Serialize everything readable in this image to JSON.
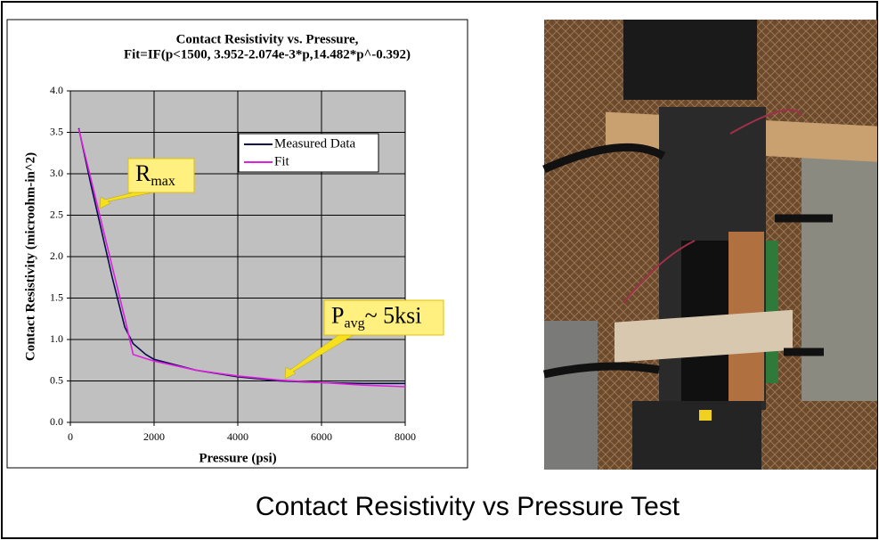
{
  "chart_data": {
    "type": "line",
    "title": [
      "Contact Resistivity vs. Pressure,",
      "Fit=IF(p<1500, 3.952-2.074e-3*p,14.482*p^-0.392)"
    ],
    "x_label": "Pressure (psi)",
    "y_label": "Contact Resistivity (microohm-in^2)",
    "x": [
      200,
      500,
      1000,
      1300,
      1500,
      1800,
      2000,
      3000,
      4000,
      5000,
      6000,
      7000,
      8000
    ],
    "series": [
      {
        "name": "Measured Data",
        "color": "#0a0a50",
        "values": [
          3.55,
          2.85,
          1.75,
          1.15,
          0.95,
          0.82,
          0.76,
          0.63,
          0.55,
          0.5,
          0.48,
          0.47,
          0.47
        ]
      },
      {
        "name": "Fit",
        "color": "#e020e0",
        "values": [
          3.54,
          2.92,
          1.88,
          1.26,
          0.82,
          0.77,
          0.74,
          0.63,
          0.56,
          0.51,
          0.48,
          0.45,
          0.43
        ]
      }
    ],
    "xlim": [
      0,
      8000
    ],
    "xticks": [
      0,
      2000,
      4000,
      6000,
      8000
    ],
    "ylim": [
      0,
      4
    ],
    "yticks": [
      {
        "value": 0,
        "label": "0.0"
      },
      0.5,
      {
        "value": 1,
        "label": "1.0"
      },
      1.5,
      {
        "value": 2,
        "label": "2.0"
      },
      2.5,
      {
        "value": 3,
        "label": "3.0"
      },
      3.5,
      {
        "value": 4,
        "label": "4.0"
      }
    ],
    "grid": true,
    "plot_background": "#c0c0c0",
    "annotations": [
      {
        "text": "R",
        "sub": "max"
      },
      {
        "text": "P",
        "sub": "avg",
        "suffix": "~ 5ksi"
      }
    ]
  },
  "caption": "Contact Resistivity vs Pressure Test"
}
